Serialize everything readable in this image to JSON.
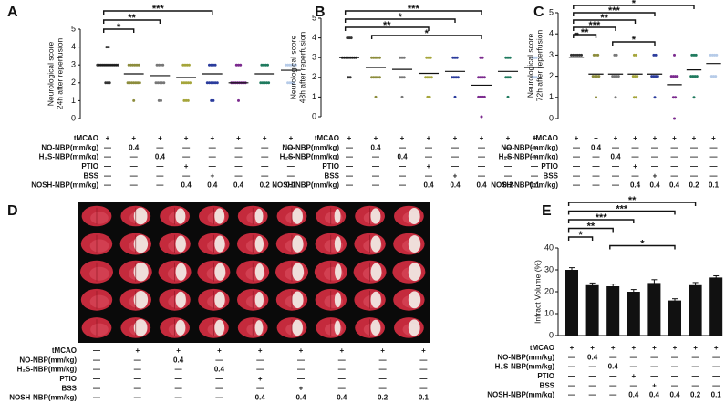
{
  "chart_data": [
    {
      "type": "strip",
      "panel": "A",
      "y_label": [
        "Neurological score",
        "24h after reperfusion"
      ],
      "ylim": [
        0,
        5
      ],
      "yticks": [
        0,
        1,
        2,
        3,
        4,
        5
      ],
      "series": [
        {
          "color": "#333333",
          "values": [
            4,
            4,
            3,
            3,
            3,
            3,
            3,
            3,
            3,
            3,
            3,
            3,
            3,
            3,
            2,
            2,
            2
          ],
          "mean": 3.0
        },
        {
          "color": "#8c8c3c",
          "values": [
            3,
            3,
            3,
            3,
            3,
            3,
            2,
            2,
            2,
            2,
            2,
            2,
            2,
            1
          ],
          "mean": 2.5
        },
        {
          "color": "#777777",
          "values": [
            3,
            3,
            3,
            3,
            2,
            2,
            2,
            2,
            2,
            1,
            1
          ],
          "mean": 2.4
        },
        {
          "color": "#a5a53a",
          "values": [
            3,
            3,
            3,
            3,
            2,
            2,
            2,
            2,
            2,
            1,
            1,
            1
          ],
          "mean": 2.3
        },
        {
          "color": "#2a3b9c",
          "values": [
            3,
            3,
            3,
            3,
            2,
            2,
            2,
            2,
            2,
            2,
            1,
            1
          ],
          "mean": 2.5
        },
        {
          "color": "#7b2a8e",
          "values": [
            3,
            3,
            3,
            2,
            2,
            2,
            2,
            2,
            2,
            2,
            2,
            1
          ],
          "mean": 2.0
        },
        {
          "color": "#1f7a5e",
          "values": [
            3,
            3,
            3,
            3,
            2,
            2,
            2,
            2,
            2
          ],
          "mean": 2.5
        },
        {
          "color": "#b6cbe8",
          "values": [
            3,
            3,
            3,
            3,
            3,
            3,
            2,
            2,
            2,
            2
          ],
          "mean": 2.7
        }
      ],
      "annotations": [
        {
          "text": "***",
          "between": [
            0,
            4
          ]
        },
        {
          "text": "**",
          "between": [
            0,
            2
          ]
        },
        {
          "text": "*",
          "between": [
            0,
            1
          ]
        }
      ]
    },
    {
      "type": "strip",
      "panel": "B",
      "y_label": [
        "Neurological score",
        "48h after reperfusion"
      ],
      "ylim": [
        0,
        5
      ],
      "yticks": [
        0,
        1,
        2,
        3,
        4,
        5
      ],
      "series": [
        {
          "color": "#333333",
          "values": [
            4,
            4,
            4,
            3,
            3,
            3,
            3,
            3,
            3,
            3,
            3,
            2,
            2
          ],
          "mean": 3.0
        },
        {
          "color": "#8c8c3c",
          "values": [
            3,
            3,
            3,
            3,
            3,
            2,
            2,
            2,
            2,
            2,
            1
          ],
          "mean": 2.5
        },
        {
          "color": "#777777",
          "values": [
            3,
            3,
            3,
            2,
            2,
            2,
            1
          ],
          "mean": 2.4
        },
        {
          "color": "#a5a53a",
          "values": [
            3,
            3,
            3,
            2,
            2,
            2,
            2,
            1,
            1
          ],
          "mean": 2.2
        },
        {
          "color": "#2a3b9c",
          "values": [
            3,
            3,
            3,
            2,
            2,
            2,
            2,
            1
          ],
          "mean": 2.3
        },
        {
          "color": "#7b2a8e",
          "values": [
            3,
            3,
            2,
            2,
            2,
            2,
            1,
            1,
            1,
            1,
            0
          ],
          "mean": 1.6
        },
        {
          "color": "#1f7a5e",
          "values": [
            3,
            3,
            3,
            2,
            2,
            2,
            1
          ],
          "mean": 2.3
        },
        {
          "color": "#b6cbe8",
          "values": [
            3,
            3,
            3,
            2,
            2,
            2
          ],
          "mean": 2.5
        }
      ],
      "annotations": [
        {
          "text": "***",
          "between": [
            0,
            5
          ]
        },
        {
          "text": "*",
          "between": [
            0,
            4
          ]
        },
        {
          "text": "**",
          "between": [
            0,
            3
          ]
        },
        {
          "text": "*",
          "between": [
            1,
            5
          ]
        }
      ]
    },
    {
      "type": "strip",
      "panel": "C",
      "y_label": [
        "Neurological score",
        "72h after reperfusion"
      ],
      "ylim": [
        0,
        5
      ],
      "yticks": [
        0,
        1,
        2,
        3,
        4,
        5
      ],
      "series": [
        {
          "color": "#333333",
          "values": [
            4,
            4,
            3,
            3,
            3,
            3,
            3,
            3
          ],
          "mean": 2.9
        },
        {
          "color": "#8c8c3c",
          "values": [
            3,
            3,
            3,
            2,
            2,
            2,
            2,
            1
          ],
          "mean": 2.1
        },
        {
          "color": "#777777",
          "values": [
            3,
            3,
            2,
            2,
            2,
            2,
            1
          ],
          "mean": 2.1
        },
        {
          "color": "#a5a53a",
          "values": [
            3,
            3,
            2,
            2,
            2,
            1,
            1
          ],
          "mean": 2.1
        },
        {
          "color": "#2a3b9c",
          "values": [
            3,
            3,
            2,
            2,
            2,
            2,
            1
          ],
          "mean": 2.1
        },
        {
          "color": "#7b2a8e",
          "values": [
            3,
            2,
            2,
            2,
            2,
            1,
            1,
            0
          ],
          "mean": 1.6
        },
        {
          "color": "#1f7a5e",
          "values": [
            3,
            3,
            3,
            2,
            2,
            2,
            2,
            1
          ],
          "mean": 2.3
        },
        {
          "color": "#b6cbe8",
          "values": [
            3,
            3,
            3,
            3,
            2,
            2,
            2
          ],
          "mean": 2.6
        }
      ],
      "annotations": [
        {
          "text": "*",
          "between": [
            0,
            6
          ]
        },
        {
          "text": "***",
          "between": [
            0,
            4
          ]
        },
        {
          "text": "**",
          "between": [
            0,
            3
          ]
        },
        {
          "text": "***",
          "between": [
            0,
            2
          ]
        },
        {
          "text": "**",
          "between": [
            0,
            1
          ]
        },
        {
          "text": "*",
          "between": [
            2,
            4
          ]
        }
      ]
    },
    {
      "type": "bar",
      "panel": "E",
      "y_label": [
        "Infract Volume (%)"
      ],
      "ylim": [
        0,
        40
      ],
      "yticks": [
        0,
        10,
        20,
        30,
        40
      ],
      "color": "#111111",
      "values": [
        30,
        23,
        22.5,
        20,
        24,
        16,
        23,
        26.5
      ],
      "errors": [
        1,
        1,
        1,
        1,
        1.5,
        0.8,
        1.2,
        0.8
      ],
      "annotations": [
        {
          "text": "**",
          "between": [
            0,
            6
          ]
        },
        {
          "text": "***",
          "between": [
            0,
            5
          ]
        },
        {
          "text": "***",
          "between": [
            0,
            3
          ]
        },
        {
          "text": "**",
          "between": [
            0,
            2
          ]
        },
        {
          "text": "*",
          "between": [
            0,
            1
          ]
        },
        {
          "text": "*",
          "between": [
            2,
            5
          ]
        }
      ]
    }
  ],
  "image_panel": {
    "panel": "D"
  },
  "treatment_table": {
    "row_labels": [
      "tMCAO",
      "NO-NBP(mm/kg)",
      "H₂S-NBP(mm/kg)",
      "PTIO",
      "BSS",
      "NOSH-NBP(mm/kg)"
    ],
    "rows": [
      [
        "—",
        "+",
        "+",
        "+",
        "+",
        "+",
        "+",
        "+",
        "+"
      ],
      [
        "—",
        "—",
        "0.4",
        "—",
        "—",
        "—",
        "—",
        "—",
        "—"
      ],
      [
        "—",
        "—",
        "—",
        "0.4",
        "—",
        "—",
        "—",
        "—",
        "—"
      ],
      [
        "—",
        "—",
        "—",
        "—",
        "+",
        "—",
        "—",
        "—",
        "—"
      ],
      [
        "—",
        "—",
        "—",
        "—",
        "—",
        "+",
        "—",
        "—",
        "—"
      ],
      [
        "—",
        "—",
        "—",
        "—",
        "0.4",
        "0.4",
        "0.4",
        "0.2",
        "0.1"
      ]
    ]
  }
}
